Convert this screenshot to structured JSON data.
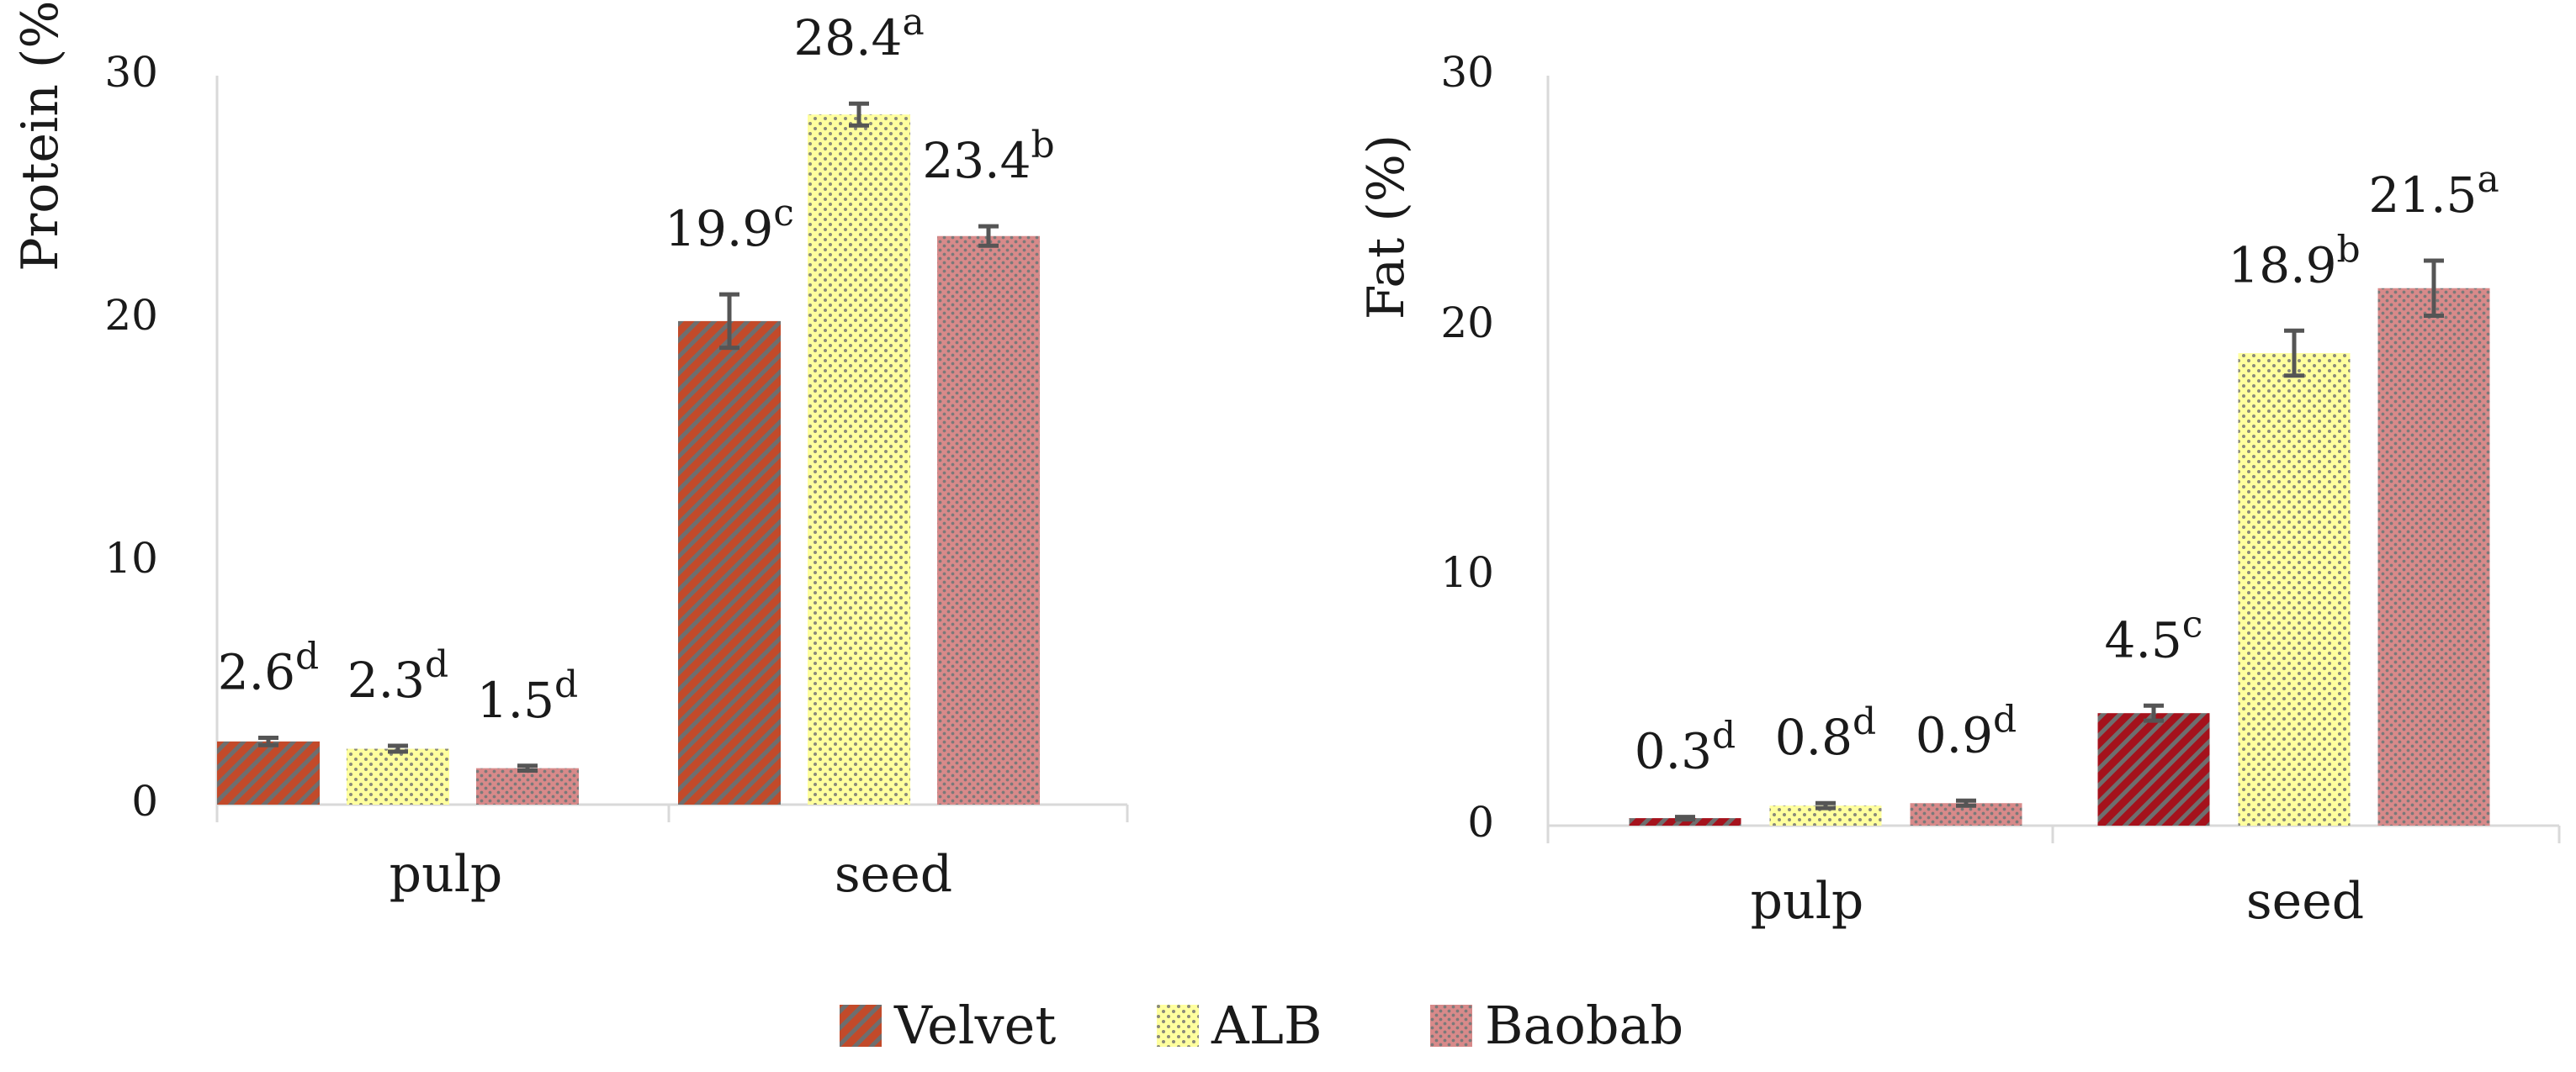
{
  "chart_data": [
    {
      "type": "bar",
      "categories": [
        "pulp",
        "seed"
      ],
      "ylabel": "Protein (%)",
      "ylim": [
        0,
        30
      ],
      "yticks": [
        0,
        10,
        20,
        30
      ],
      "grid": false,
      "series": [
        {
          "name": "Velvet",
          "values": [
            2.6,
            19.9
          ],
          "errors": [
            0.15,
            1.1
          ],
          "letters": [
            "d",
            "c"
          ],
          "labels": [
            "2.6",
            "19.9"
          ]
        },
        {
          "name": "ALB",
          "values": [
            2.3,
            28.4
          ],
          "errors": [
            0.12,
            0.45
          ],
          "letters": [
            "d",
            "a"
          ],
          "labels": [
            "2.3",
            "28.4"
          ]
        },
        {
          "name": "Baobab",
          "values": [
            1.5,
            23.4
          ],
          "errors": [
            0.1,
            0.4
          ],
          "letters": [
            "d",
            "b"
          ],
          "labels": [
            "1.5",
            "23.4"
          ]
        }
      ]
    },
    {
      "type": "bar",
      "categories": [
        "pulp",
        "seed"
      ],
      "ylabel": "Fat (%)",
      "ylim": [
        0,
        30
      ],
      "yticks": [
        0,
        10,
        20,
        30
      ],
      "grid": false,
      "series": [
        {
          "name": "Velvet",
          "values": [
            0.3,
            4.5
          ],
          "errors": [
            0.05,
            0.3
          ],
          "letters": [
            "d",
            "c"
          ],
          "labels": [
            "0.3",
            "4.5"
          ]
        },
        {
          "name": "ALB",
          "values": [
            0.8,
            18.9
          ],
          "errors": [
            0.1,
            0.9
          ],
          "letters": [
            "d",
            "b"
          ],
          "labels": [
            "0.8",
            "18.9"
          ]
        },
        {
          "name": "Baobab",
          "values": [
            0.9,
            21.5
          ],
          "errors": [
            0.1,
            1.1
          ],
          "letters": [
            "d",
            "a"
          ],
          "labels": [
            "0.9",
            "21.5"
          ]
        }
      ]
    }
  ],
  "legend": {
    "position": "bottom-center",
    "items": [
      {
        "label": "Velvet",
        "pattern": "velvet-stripes"
      },
      {
        "label": "ALB",
        "pattern": "alb-dots"
      },
      {
        "label": "Baobab",
        "pattern": "baobab-dots"
      }
    ]
  },
  "colors": {
    "velvet_base": "#c24a2a",
    "velvet_stripe": "#6e6e6e",
    "velvet_dark_base": "#a5121c",
    "alb_base": "#ffff9e",
    "alb_dot": "#8a8a7a",
    "baobab_base": "#d88a8a",
    "baobab_dot": "#7a7a7a",
    "axis": "#d9d9d9",
    "error_bar": "#555555"
  }
}
